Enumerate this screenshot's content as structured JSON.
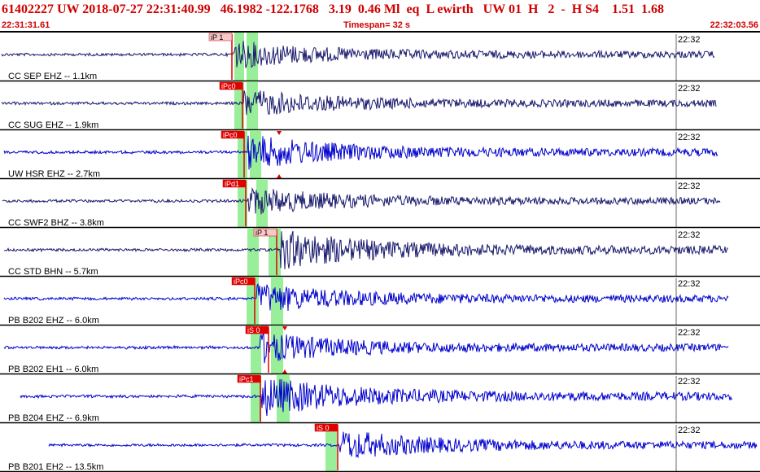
{
  "header": {
    "title": "61402227 UW 2018-07-27 22:31:40.99   46.1982 -122.1768   3.19  0.46 Ml  eq  L ewirth   UW 01  H   2  -  H S4    1.51  1.68",
    "start_time": "22:31:31.61",
    "timespan": "Timespan=  32 s",
    "end_time": "22:32:03.56"
  },
  "colors": {
    "header_text": "#d00000",
    "trace_blue": "#0000cc",
    "trace_navy": "#1a1a6e",
    "pick_red": "#e00000",
    "window_green": "#99ee99",
    "separator": "#000000"
  },
  "channels": [
    {
      "label": "CC SEP EHZ -- 1.1km",
      "time": "22:32",
      "pick": "iP 1",
      "color": "navy",
      "amp": 0.55
    },
    {
      "label": "CC SUG EHZ -- 1.9km",
      "time": "22:32",
      "pick": "iPc0",
      "color": "navy",
      "amp": 0.55
    },
    {
      "label": "UW HSR EHZ -- 2.7km",
      "time": "22:32",
      "pick": "iPc0",
      "color": "blue",
      "amp": 0.7
    },
    {
      "label": "CC SWF2 BHZ -- 3.8km",
      "time": "22:32",
      "pick": "iPd1",
      "color": "navy",
      "amp": 0.55
    },
    {
      "label": "CC STD BHN -- 5.7km",
      "time": "22:32",
      "pick": "iP 1",
      "color": "navy",
      "amp": 0.8
    },
    {
      "label": "PB B202 EHZ -- 6.0km",
      "time": "22:32",
      "pick": "iPc0",
      "color": "blue",
      "amp": 0.6
    },
    {
      "label": "PB B202 EH1 -- 6.0km",
      "time": "22:32",
      "pick": "iS 0",
      "color": "blue",
      "amp": 0.6
    },
    {
      "label": "PB B204 EHZ -- 6.9km",
      "time": "22:32",
      "pick": "iPc1",
      "color": "blue",
      "amp": 0.8
    },
    {
      "label": "PB B201 EH2 -- 13.5km",
      "time": "22:32",
      "pick": "iS 0",
      "color": "blue",
      "amp": 0.6
    }
  ]
}
